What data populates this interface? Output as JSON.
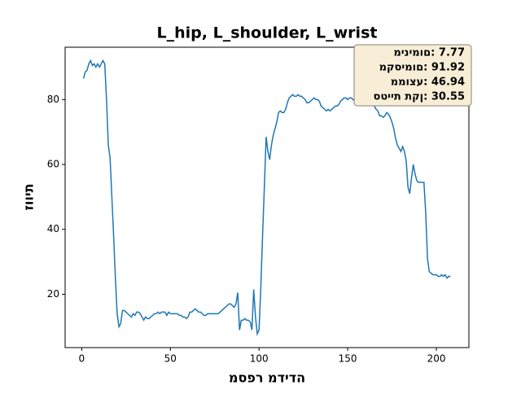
{
  "chart_data": {
    "type": "line",
    "title": "L_hip, L_shoulder, L_wrist",
    "x_label": "מספר מדידה",
    "y_label": "זווית",
    "annotations": [
      "מינימום: 7.77",
      "מקסימום: 91.92",
      "ממוצע: 46.94",
      "סטיית תקן: 30.55"
    ],
    "x": [
      1,
      2,
      3,
      4,
      5,
      6,
      7,
      8,
      9,
      10,
      11,
      12,
      13,
      14,
      15,
      16,
      17,
      18,
      19,
      20,
      21,
      22,
      23,
      24,
      25,
      26,
      27,
      28,
      29,
      30,
      31,
      32,
      33,
      34,
      35,
      36,
      37,
      38,
      39,
      40,
      41,
      42,
      43,
      44,
      45,
      46,
      47,
      48,
      49,
      50,
      51,
      52,
      53,
      54,
      55,
      56,
      57,
      58,
      59,
      60,
      61,
      62,
      63,
      64,
      65,
      66,
      67,
      68,
      69,
      70,
      71,
      72,
      73,
      74,
      75,
      76,
      77,
      78,
      79,
      80,
      81,
      82,
      83,
      84,
      85,
      86,
      87,
      88,
      89,
      90,
      91,
      92,
      93,
      94,
      95,
      96,
      97,
      98,
      99,
      100,
      101,
      102,
      103,
      104,
      105,
      106,
      107,
      108,
      109,
      110,
      111,
      112,
      113,
      114,
      115,
      116,
      117,
      118,
      119,
      120,
      121,
      122,
      123,
      124,
      125,
      126,
      127,
      128,
      129,
      130,
      131,
      132,
      133,
      134,
      135,
      136,
      137,
      138,
      139,
      140,
      141,
      142,
      143,
      144,
      145,
      146,
      147,
      148,
      149,
      150,
      151,
      152,
      153,
      154,
      155,
      156,
      157,
      158,
      159,
      160,
      161,
      162,
      163,
      164,
      165,
      166,
      167,
      168,
      169,
      170,
      171,
      172,
      173,
      174,
      175,
      176,
      177,
      178,
      179,
      180,
      181,
      182,
      183,
      184,
      185,
      186,
      187,
      188,
      189,
      190,
      191,
      192,
      193,
      194,
      195,
      196,
      197,
      198,
      199,
      200,
      201,
      202,
      203,
      204,
      205,
      206,
      207,
      208
    ],
    "series": [
      {
        "color": "#1f77b4",
        "values": [
          86.5,
          88.5,
          89,
          91,
          92,
          90.5,
          91,
          90,
          91,
          90,
          91,
          92,
          91,
          80,
          66,
          62,
          50,
          38,
          25,
          14,
          10,
          11,
          15,
          15,
          14.5,
          14,
          13.5,
          13,
          14,
          13.5,
          14.5,
          14.5,
          14,
          13,
          12,
          13,
          12.5,
          12.5,
          13,
          13.5,
          14,
          14,
          14.5,
          14,
          14.5,
          14.5,
          14.5,
          13.5,
          14.5,
          14,
          14,
          14,
          14,
          14,
          13.5,
          13.5,
          13,
          13,
          12.5,
          13,
          14.5,
          14.5,
          15,
          15.5,
          15,
          14.5,
          14.5,
          14,
          13.5,
          13.5,
          14,
          14,
          14,
          14,
          14,
          14,
          14,
          14.5,
          15,
          15.5,
          16,
          16.5,
          17,
          17,
          16.5,
          16,
          17,
          20.5,
          9,
          12,
          12,
          12.5,
          12,
          12,
          11.5,
          9,
          21.5,
          13,
          7.77,
          9,
          22,
          38,
          53,
          68.5,
          64,
          61.5,
          66,
          69,
          71,
          73,
          76,
          76.5,
          76,
          76,
          77,
          79,
          80.5,
          81,
          81.5,
          81,
          81,
          81.5,
          81,
          81,
          80.5,
          80,
          79,
          79,
          79.5,
          80,
          80.5,
          80,
          80,
          79.5,
          78,
          77.5,
          77,
          76.5,
          77,
          76.5,
          77,
          77.5,
          78,
          78,
          78.5,
          79.5,
          80,
          80.5,
          80.5,
          80,
          80.5,
          80.5,
          80,
          79.5,
          79,
          79,
          79.5,
          80,
          79.5,
          79,
          78.5,
          79,
          79.5,
          79,
          78,
          77,
          76.5,
          75,
          75,
          74.5,
          75,
          76,
          75.5,
          74.5,
          73,
          71,
          68,
          66,
          65,
          64,
          65.5,
          64,
          61,
          53,
          51,
          56,
          60,
          57,
          55,
          54.5,
          54.5,
          54.5,
          54.5,
          45,
          31,
          27,
          26.5,
          26,
          26,
          26,
          25.5,
          25.5,
          26,
          25.5,
          26,
          25,
          25.5,
          25.5
        ]
      }
    ],
    "xlim": [
      -9.35,
      218.35
    ],
    "ylim": [
      3.56,
      96.13
    ],
    "xticks": [
      0,
      50,
      100,
      150,
      200
    ],
    "yticks": [
      20,
      40,
      60,
      80
    ],
    "grid": false
  }
}
